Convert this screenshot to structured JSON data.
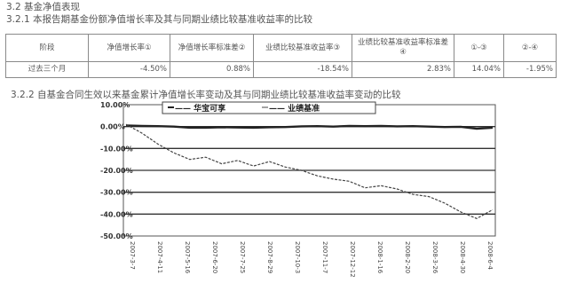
{
  "headings": {
    "h1": "3.2 基金净值表现",
    "h2": "3.2.1 本报告期基金份额净值增长率及其与同期业绩比较基准收益率的比较",
    "h3": "3.2.2 自基金合同生效以来基金累计净值增长率变动及其与同期业绩比较基准收益率变动的比较"
  },
  "table": {
    "headers": [
      "阶段",
      "净值增长率①",
      "净值增长率标准差②",
      "业绩比较基准收益率③",
      "业绩比较基准收益率标准差④",
      "①-③",
      "②-④"
    ],
    "rows": [
      [
        "过去三个月",
        "-4.50%",
        "0.88%",
        "-18.54%",
        "2.83%",
        "14.04%",
        "-1.95%"
      ]
    ]
  },
  "chart_data": {
    "type": "line",
    "yticks": [
      "10.00%",
      "0.00%",
      "-10.00%",
      "-20.00%",
      "-30.00%",
      "-40.00%",
      "-50.00%"
    ],
    "ylim": [
      -50,
      10
    ],
    "series": [
      {
        "name": "",
        "color": "#222222",
        "values": [
          0.5,
          0.3,
          0.2,
          0.0,
          -0.5,
          -0.5,
          -0.3,
          -0.4,
          -0.5,
          -0.3,
          -0.2,
          0.1,
          0.2,
          0.0,
          0.3,
          0.2,
          0.3,
          0.1,
          0.2,
          0.0,
          -0.2,
          -0.1,
          -1.0,
          -0.5
        ]
      },
      {
        "name": "",
        "color": "#444444",
        "values": [
          1.0,
          -3.0,
          -8.0,
          -12.0,
          -15.0,
          -14.0,
          -17.0,
          -15.5,
          -18.0,
          -16.0,
          -18.5,
          -20.0,
          -22.5,
          -24.0,
          -25.0,
          -28.0,
          -27.0,
          -28.5,
          -31.0,
          -32.0,
          -35.0,
          -39.0,
          -42.0,
          -38.0
        ]
      }
    ],
    "legend_labels": [
      "—— 华宝可享",
      "—— 业绩基准"
    ],
    "x_labels": [
      "2007-3-7",
      "2007-4-11",
      "2007-5-16",
      "2007-6-20",
      "2007-7-25",
      "2007-8-29",
      "2007-10-3",
      "2007-11-7",
      "2007-12-12",
      "2008-1-16",
      "2008-2-20",
      "2008-3-26",
      "2008-4-30",
      "2008-6-4"
    ]
  }
}
